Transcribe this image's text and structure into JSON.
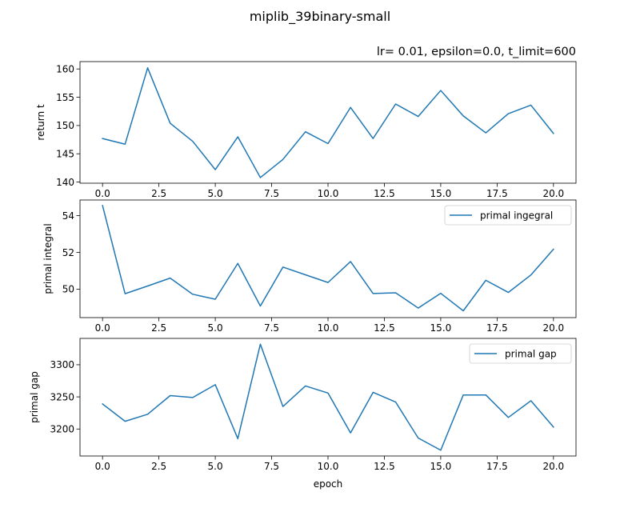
{
  "figure": {
    "suptitle": "miplib_39binary-small"
  },
  "chart_data": [
    {
      "type": "line",
      "title": "lr= 0.01, epsilon=0.0, t_limit=600",
      "xlabel": "",
      "ylabel": "return t",
      "x": [
        0,
        1,
        2,
        3,
        4,
        5,
        6,
        7,
        8,
        9,
        10,
        11,
        12,
        13,
        14,
        15,
        16,
        17,
        18,
        19,
        20
      ],
      "xlim": [
        -1,
        21
      ],
      "ylim": [
        139.8,
        161.3
      ],
      "xticks": [
        0,
        2.5,
        5,
        7.5,
        10,
        12.5,
        15,
        17.5,
        20
      ],
      "xtick_labels": [
        "0.0",
        "2.5",
        "5.0",
        "7.5",
        "10.0",
        "12.5",
        "15.0",
        "17.5",
        "20.0"
      ],
      "yticks": [
        140,
        145,
        150,
        155,
        160
      ],
      "ytick_labels": [
        "140",
        "145",
        "150",
        "155",
        "160"
      ],
      "legend": null,
      "grid": false,
      "series": [
        {
          "color": "#1f77b4",
          "values": [
            147.7,
            146.7,
            160.2,
            150.4,
            147.2,
            142.2,
            148.0,
            140.8,
            144.0,
            148.9,
            146.8,
            153.2,
            147.7,
            153.8,
            151.6,
            156.2,
            151.7,
            148.7,
            152.1,
            153.6,
            148.6
          ]
        }
      ]
    },
    {
      "type": "line",
      "title": "",
      "xlabel": "",
      "ylabel": "primal integral",
      "x": [
        0,
        1,
        2,
        3,
        4,
        5,
        6,
        7,
        8,
        9,
        10,
        11,
        12,
        13,
        14,
        15,
        16,
        17,
        18,
        19,
        20
      ],
      "xlim": [
        -1,
        21
      ],
      "ylim": [
        48.45,
        54.85
      ],
      "xticks": [
        0,
        2.5,
        5,
        7.5,
        10,
        12.5,
        15,
        17.5,
        20
      ],
      "xtick_labels": [
        "0.0",
        "2.5",
        "5.0",
        "7.5",
        "10.0",
        "12.5",
        "15.0",
        "17.5",
        "20.0"
      ],
      "yticks": [
        50,
        52,
        54
      ],
      "ytick_labels": [
        "50",
        "52",
        "54"
      ],
      "legend": "top-right",
      "grid": false,
      "series": [
        {
          "name": "primal ingegral",
          "color": "#1f77b4",
          "values": [
            54.55,
            49.75,
            50.17,
            50.6,
            49.72,
            49.45,
            51.4,
            49.08,
            51.2,
            50.78,
            50.36,
            51.5,
            49.76,
            49.8,
            48.97,
            49.77,
            48.82,
            50.48,
            49.82,
            50.77,
            52.17
          ]
        }
      ]
    },
    {
      "type": "line",
      "title": "",
      "xlabel": "epoch",
      "ylabel": "primal gap",
      "x": [
        0,
        1,
        2,
        3,
        4,
        5,
        6,
        7,
        8,
        9,
        10,
        11,
        12,
        13,
        14,
        15,
        16,
        17,
        18,
        19,
        20
      ],
      "xlim": [
        -1,
        21
      ],
      "ylim": [
        3158,
        3341
      ],
      "xticks": [
        0,
        2.5,
        5,
        7.5,
        10,
        12.5,
        15,
        17.5,
        20
      ],
      "xtick_labels": [
        "0.0",
        "2.5",
        "5.0",
        "7.5",
        "10.0",
        "12.5",
        "15.0",
        "17.5",
        "20.0"
      ],
      "yticks": [
        3200,
        3250,
        3300
      ],
      "ytick_labels": [
        "3200",
        "3250",
        "3300"
      ],
      "legend": "top-right",
      "grid": false,
      "series": [
        {
          "name": "primal gap",
          "color": "#1f77b4",
          "values": [
            3239,
            3212,
            3223,
            3252,
            3249,
            3269,
            3185,
            3332,
            3235,
            3267,
            3256,
            3194,
            3257,
            3242,
            3186,
            3167,
            3253,
            3253,
            3218,
            3244,
            3203
          ]
        }
      ]
    }
  ]
}
